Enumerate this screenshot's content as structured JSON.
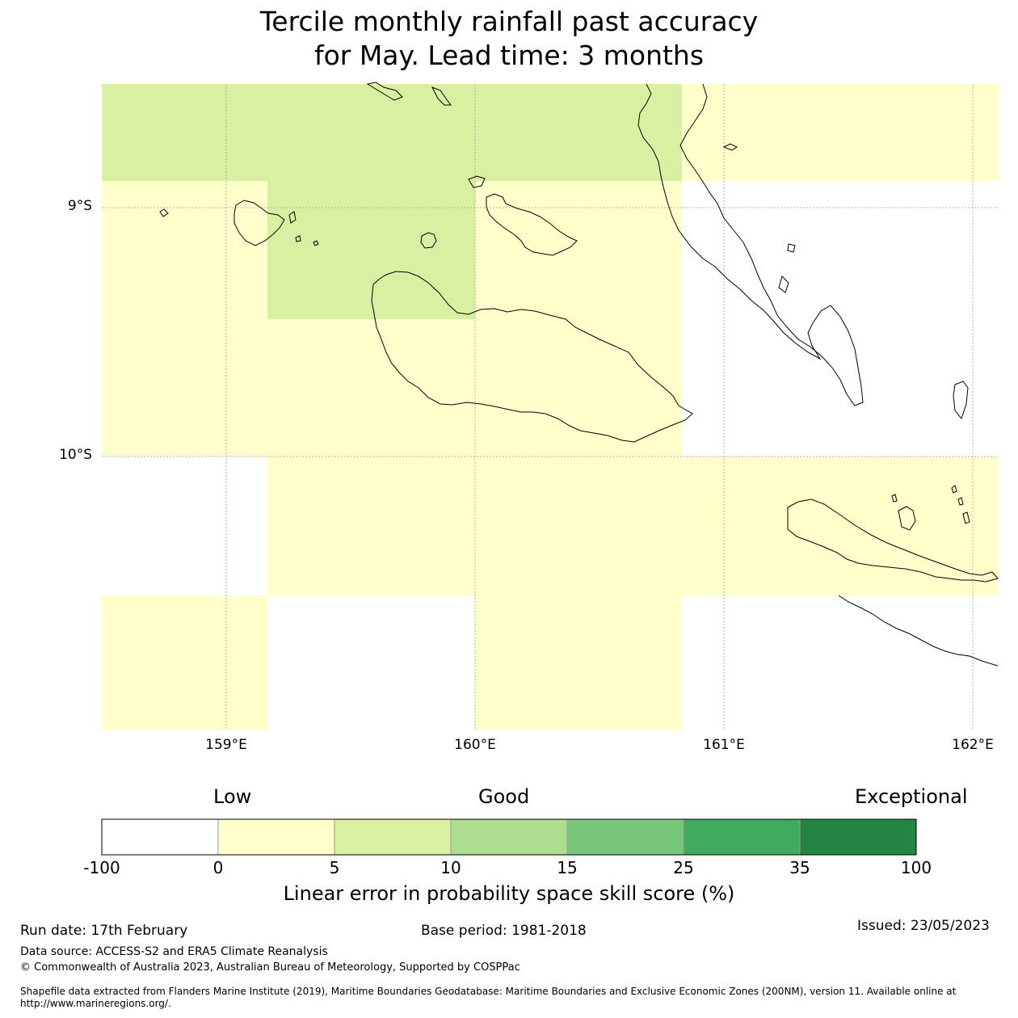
{
  "title": {
    "line1": "Tercile monthly rainfall past accuracy",
    "line2": "for May. Lead time: 3 months"
  },
  "map": {
    "lat_labels": [
      "9°S",
      "10°S"
    ],
    "lon_labels": [
      "159°E",
      "160°E",
      "161°E",
      "162°E"
    ],
    "colors": {
      "c0_5": "#ffffcc",
      "c5_10": "#d9f0a3",
      "c10_15": "#addd8e",
      "c15_25": "#78c679",
      "c25_35": "#41ab5d",
      "c35_100": "#238443",
      "none": "#ffffff"
    }
  },
  "legend": {
    "categories": [
      "Low",
      "Good",
      "Exceptional"
    ],
    "ticks": [
      "-100",
      "0",
      "5",
      "10",
      "15",
      "25",
      "35",
      "100"
    ],
    "colors": [
      "#ffffff",
      "#ffffcc",
      "#d9f0a3",
      "#addd8e",
      "#78c679",
      "#41ab5d",
      "#238443"
    ],
    "title": "Linear error in probability space skill score (%)"
  },
  "footer": {
    "run_date": "Run date: 17th February",
    "base_period": "Base period: 1981-2018",
    "issued": "Issued: 23/05/2023",
    "data_source": "Data source: ACCESS-S2 and ERA5 Climate Reanalysis",
    "copyright": "© Commonwealth of Australia 2023, Australian Bureau of Meteorology, Supported by COSPPac",
    "shapefile": "Shapefile data extracted from Flanders Marine Institute (2019), Maritime Boundaries Geodatabase: Maritime Boundaries and Exclusive Economic Zones (200NM), version 11. Available online at http://www.marineregions.org/."
  }
}
